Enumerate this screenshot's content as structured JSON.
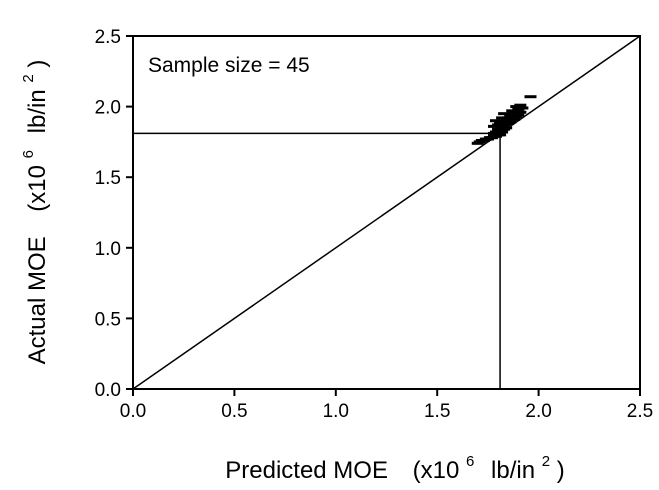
{
  "chart_data": {
    "type": "scatter",
    "title": "",
    "xlabel": {
      "main": "Predicted MOE",
      "unit_prefix": "(x10",
      "unit_exp": "6",
      "unit_mid": "lb/in",
      "unit_exp2": "2",
      "unit_suffix": ")"
    },
    "ylabel": {
      "main": "Actual MOE",
      "unit_prefix": "(x10",
      "unit_exp": "6",
      "unit_mid": "lb/in",
      "unit_exp2": "2",
      "unit_suffix": ")"
    },
    "xlim": [
      0.0,
      2.5
    ],
    "ylim": [
      0.0,
      2.5
    ],
    "xticks": [
      "0.0",
      "0.5",
      "1.0",
      "1.5",
      "2.0",
      "2.5"
    ],
    "yticks": [
      "0.0",
      "0.5",
      "1.0",
      "1.5",
      "2.0",
      "2.5"
    ],
    "grid": false,
    "annotation": "Sample size = 45",
    "reference_lines": {
      "identity_line": [
        [
          0.0,
          0.0
        ],
        [
          2.5,
          2.5
        ]
      ],
      "horizontal_at_y": 1.81,
      "vertical_at_x": 1.81
    },
    "series": [
      {
        "points": [
          {
            "x": 1.7,
            "y": 1.74
          },
          {
            "x": 1.71,
            "y": 1.75
          },
          {
            "x": 1.72,
            "y": 1.76
          },
          {
            "x": 1.73,
            "y": 1.76
          },
          {
            "x": 1.74,
            "y": 1.77
          },
          {
            "x": 1.75,
            "y": 1.77
          },
          {
            "x": 1.76,
            "y": 1.78
          },
          {
            "x": 1.77,
            "y": 1.78
          },
          {
            "x": 1.78,
            "y": 1.79
          },
          {
            "x": 1.79,
            "y": 1.79
          },
          {
            "x": 1.8,
            "y": 1.8
          },
          {
            "x": 1.81,
            "y": 1.8
          },
          {
            "x": 1.78,
            "y": 1.81
          },
          {
            "x": 1.8,
            "y": 1.81
          },
          {
            "x": 1.82,
            "y": 1.82
          },
          {
            "x": 1.79,
            "y": 1.82
          },
          {
            "x": 1.81,
            "y": 1.83
          },
          {
            "x": 1.83,
            "y": 1.84
          },
          {
            "x": 1.8,
            "y": 1.84
          },
          {
            "x": 1.82,
            "y": 1.85
          },
          {
            "x": 1.84,
            "y": 1.85
          },
          {
            "x": 1.78,
            "y": 1.86
          },
          {
            "x": 1.8,
            "y": 1.87
          },
          {
            "x": 1.83,
            "y": 1.87
          },
          {
            "x": 1.85,
            "y": 1.88
          },
          {
            "x": 1.86,
            "y": 1.89
          },
          {
            "x": 1.81,
            "y": 1.89
          },
          {
            "x": 1.79,
            "y": 1.9
          },
          {
            "x": 1.84,
            "y": 1.9
          },
          {
            "x": 1.87,
            "y": 1.91
          },
          {
            "x": 1.88,
            "y": 1.91
          },
          {
            "x": 1.82,
            "y": 1.92
          },
          {
            "x": 1.85,
            "y": 1.92
          },
          {
            "x": 1.89,
            "y": 1.93
          },
          {
            "x": 1.86,
            "y": 1.94
          },
          {
            "x": 1.9,
            "y": 1.94
          },
          {
            "x": 1.83,
            "y": 1.95
          },
          {
            "x": 1.88,
            "y": 1.96
          },
          {
            "x": 1.91,
            "y": 1.96
          },
          {
            "x": 1.87,
            "y": 1.97
          },
          {
            "x": 1.9,
            "y": 1.98
          },
          {
            "x": 1.92,
            "y": 1.99
          },
          {
            "x": 1.89,
            "y": 2.0
          },
          {
            "x": 1.91,
            "y": 2.01
          },
          {
            "x": 1.96,
            "y": 2.07
          }
        ]
      }
    ]
  },
  "colors": {
    "axis": "#000000",
    "line": "#000000",
    "marker": "#000000",
    "background": "#ffffff"
  }
}
